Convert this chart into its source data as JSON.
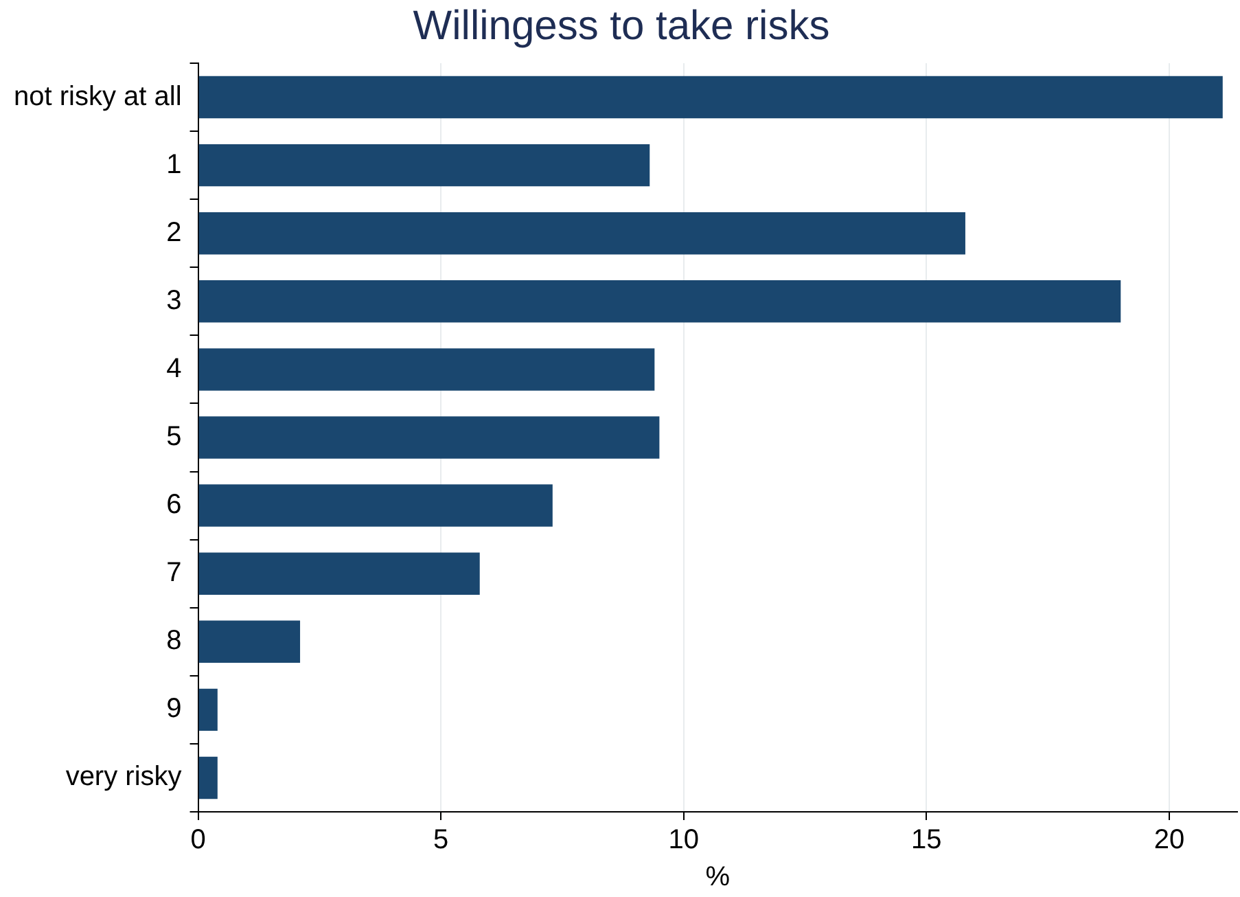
{
  "chart_data": {
    "type": "bar",
    "orientation": "horizontal",
    "title": "Willingess to take risks",
    "xlabel": "%",
    "categories": [
      "not risky at all",
      "1",
      "2",
      "3",
      "4",
      "5",
      "6",
      "7",
      "8",
      "9",
      "very risky"
    ],
    "values": [
      21.1,
      9.3,
      15.8,
      19.0,
      9.4,
      9.5,
      7.3,
      5.8,
      2.1,
      0.4,
      0.4
    ],
    "color": "#1a476f",
    "xlim": [
      0,
      21.4
    ],
    "xticks": [
      0,
      5,
      10,
      15,
      20
    ],
    "grid": "x",
    "legend": false
  }
}
